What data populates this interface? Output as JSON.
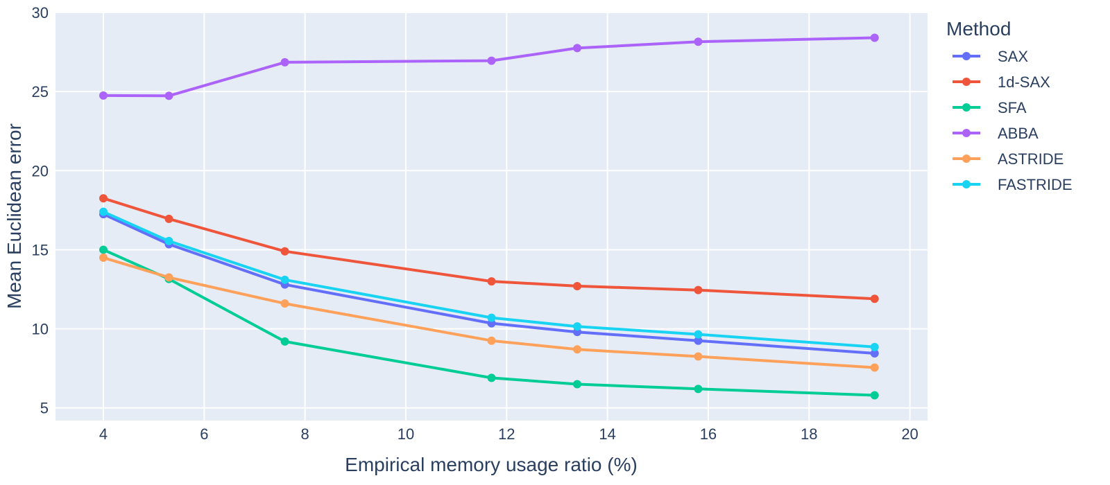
{
  "chart_data": {
    "type": "line",
    "title": "",
    "xlabel": "Empirical memory usage ratio (%)",
    "ylabel": "Mean Euclidean error",
    "xlim": [
      3.05,
      20.35
    ],
    "ylim": [
      4.2,
      30
    ],
    "xticks": [
      4,
      6,
      8,
      10,
      12,
      14,
      16,
      18,
      20
    ],
    "yticks": [
      5,
      10,
      15,
      20,
      25,
      30
    ],
    "grid": true,
    "background": "#e5ecf6",
    "legend": {
      "title": "Method",
      "position": "right"
    },
    "series": [
      {
        "name": "SAX",
        "color": "#636efa",
        "x": [
          4.0,
          5.3,
          7.6,
          11.7,
          13.4,
          15.8,
          19.3
        ],
        "y": [
          17.25,
          15.35,
          12.8,
          10.35,
          9.8,
          9.25,
          8.45
        ]
      },
      {
        "name": "1d-SAX",
        "color": "#ef553b",
        "x": [
          4.0,
          5.3,
          7.6,
          11.7,
          13.4,
          15.8,
          19.3
        ],
        "y": [
          18.25,
          16.95,
          14.9,
          13.0,
          12.7,
          12.45,
          11.9
        ]
      },
      {
        "name": "SFA",
        "color": "#00cc96",
        "x": [
          4.0,
          5.3,
          7.6,
          11.7,
          13.4,
          15.8,
          19.3
        ],
        "y": [
          15.0,
          13.15,
          9.2,
          6.9,
          6.5,
          6.2,
          5.8
        ]
      },
      {
        "name": "ABBA",
        "color": "#ab63fa",
        "x": [
          4.0,
          5.3,
          7.6,
          11.7,
          13.4,
          15.8,
          19.3
        ],
        "y": [
          24.75,
          24.73,
          26.85,
          26.95,
          27.75,
          28.15,
          28.4
        ]
      },
      {
        "name": "ASTRIDE",
        "color": "#ffa15a",
        "x": [
          4.0,
          5.3,
          7.6,
          11.7,
          13.4,
          15.8,
          19.3
        ],
        "y": [
          14.5,
          13.25,
          11.6,
          9.25,
          8.7,
          8.25,
          7.55
        ]
      },
      {
        "name": "FASTRIDE",
        "color": "#19d3f3",
        "x": [
          4.0,
          5.3,
          7.6,
          11.7,
          13.4,
          15.8,
          19.3
        ],
        "y": [
          17.4,
          15.55,
          13.1,
          10.7,
          10.15,
          9.65,
          8.85
        ]
      }
    ]
  }
}
